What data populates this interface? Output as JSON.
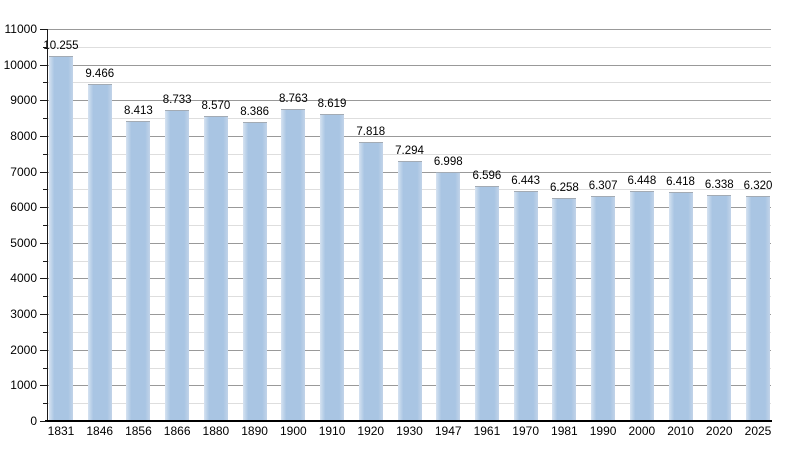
{
  "page": {
    "background": "#ffffff"
  },
  "chart_data": {
    "type": "bar",
    "title": "",
    "subtitle": "",
    "xlabel": "",
    "ylabel": "",
    "categories": [
      "1831",
      "1846",
      "1856",
      "1866",
      "1880",
      "1890",
      "1900",
      "1910",
      "1920",
      "1930",
      "1947",
      "1961",
      "1970",
      "1981",
      "1990",
      "2000",
      "2010",
      "2020",
      "2025"
    ],
    "values": [
      10255,
      9466,
      8413,
      8733,
      8570,
      8386,
      8763,
      8619,
      7818,
      7294,
      6998,
      6596,
      6443,
      6258,
      6307,
      6448,
      6418,
      6338,
      6320
    ],
    "value_labels": [
      "10.255",
      "9.466",
      "8.413",
      "8.733",
      "8.570",
      "8.386",
      "8.763",
      "8.619",
      "7.818",
      "7.294",
      "6.998",
      "6.596",
      "6.443",
      "6.258",
      "6.307",
      "6.448",
      "6.418",
      "6.338",
      "6.320"
    ],
    "ylim": [
      0,
      11000
    ],
    "y_major_step": 1000,
    "y_minor_step": 500,
    "y_tick_labels": [
      "0",
      "1000",
      "2000",
      "3000",
      "4000",
      "5000",
      "6000",
      "7000",
      "8000",
      "9000",
      "10000",
      "11000"
    ],
    "grid": "horizontal-major-and-minor",
    "legend": "none",
    "colors": {
      "bar_fill": "#a9c5e3",
      "bar_edge_left_highlight": "#d6e3f1",
      "bar_edge_right_highlight": "#c2d4e9",
      "bar_top_border": "#a3abb4",
      "grid_major": "#999999",
      "grid_minor": "#dedede",
      "axis": "#111111",
      "label_text": "#000000",
      "background": "#ffffff"
    }
  }
}
